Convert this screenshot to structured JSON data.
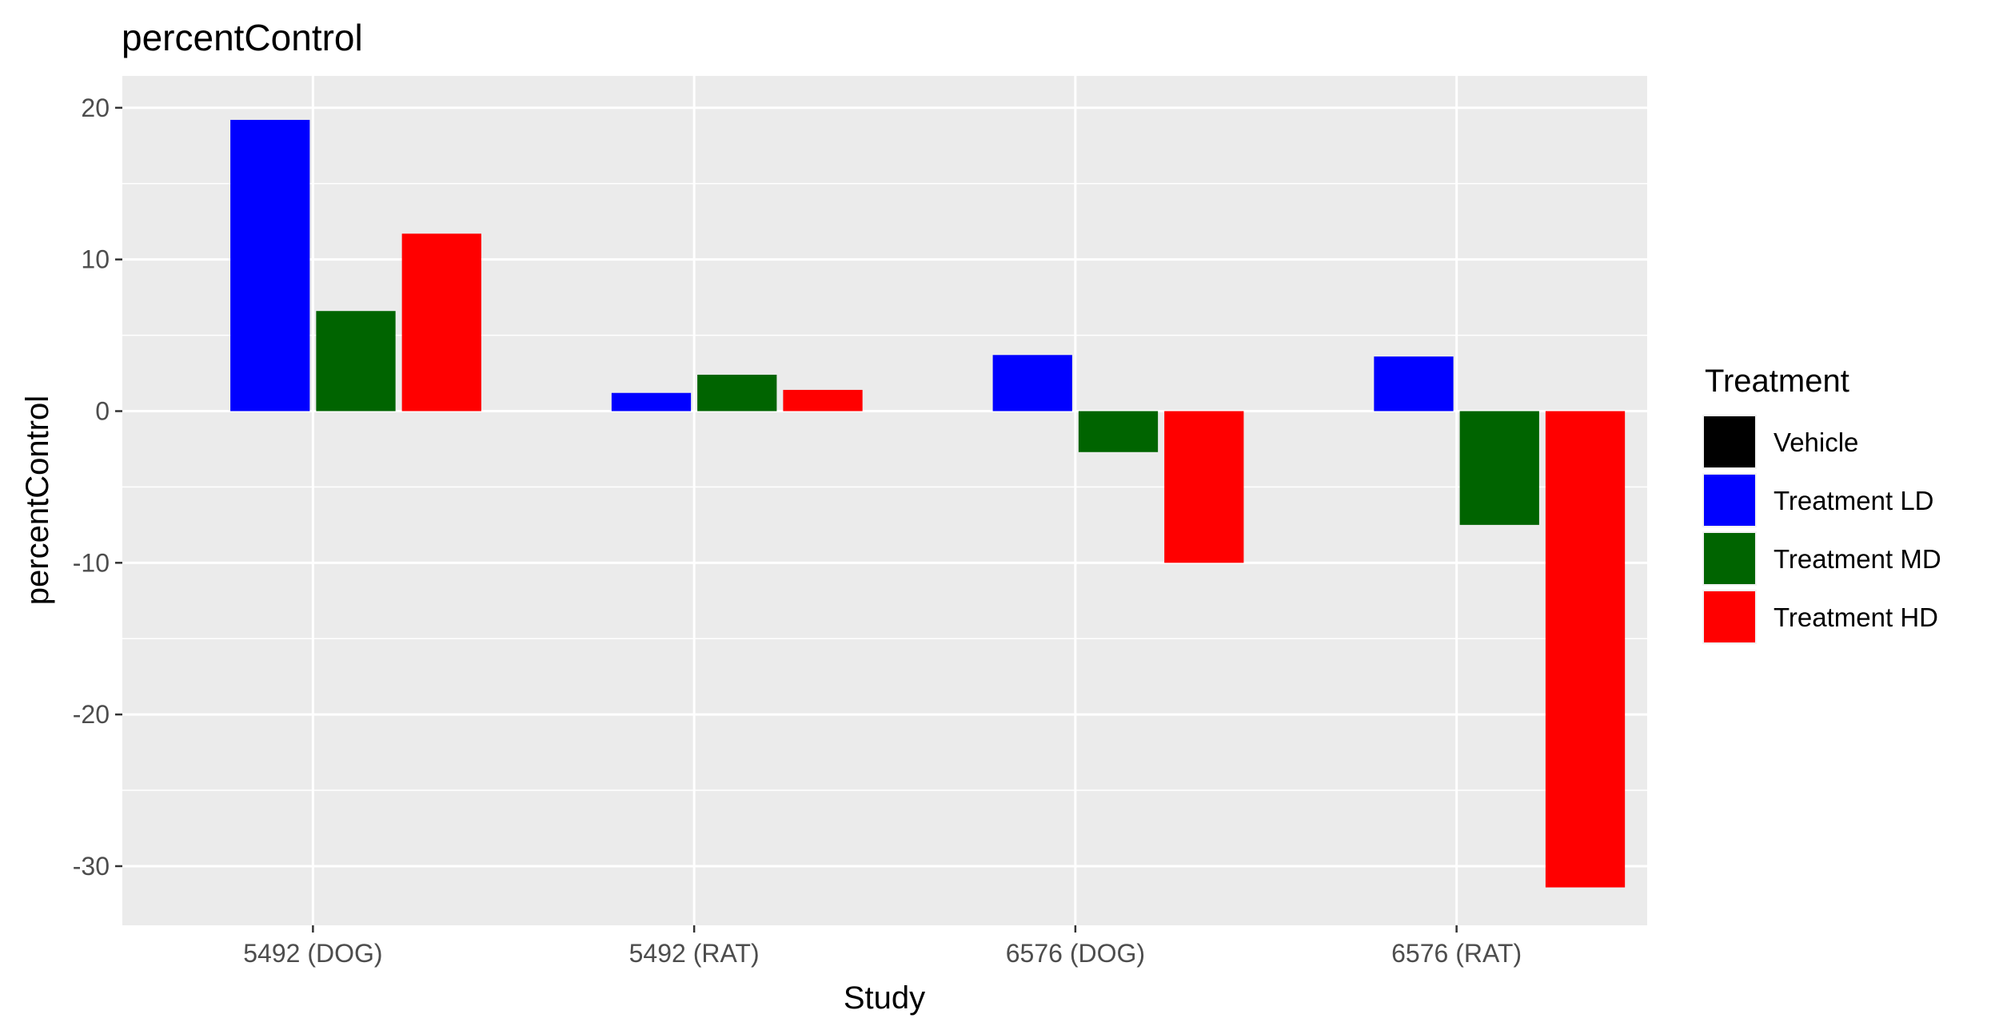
{
  "chart_data": {
    "type": "bar",
    "title": "percentControl",
    "xlabel": "Study",
    "ylabel": "percentControl",
    "categories": [
      "5492 (DOG)",
      "5492 (RAT)",
      "6576 (DOG)",
      "6576 (RAT)"
    ],
    "series": [
      {
        "name": "Vehicle",
        "color": "#000000",
        "values": [
          0,
          0,
          0,
          0
        ]
      },
      {
        "name": "Treatment LD",
        "color": "#0000ff",
        "values": [
          19.2,
          1.2,
          3.7,
          3.6
        ]
      },
      {
        "name": "Treatment MD",
        "color": "#006400",
        "values": [
          6.6,
          2.4,
          -2.7,
          -7.5
        ]
      },
      {
        "name": "Treatment HD",
        "color": "#ff0000",
        "values": [
          11.7,
          1.4,
          -10.0,
          -31.4
        ]
      }
    ],
    "ylim": [
      -33.9,
      22.1
    ],
    "yticks": [
      20,
      10,
      0,
      -10,
      -20,
      -30
    ],
    "legend": {
      "title": "Treatment",
      "position": "right"
    },
    "grid": true
  }
}
